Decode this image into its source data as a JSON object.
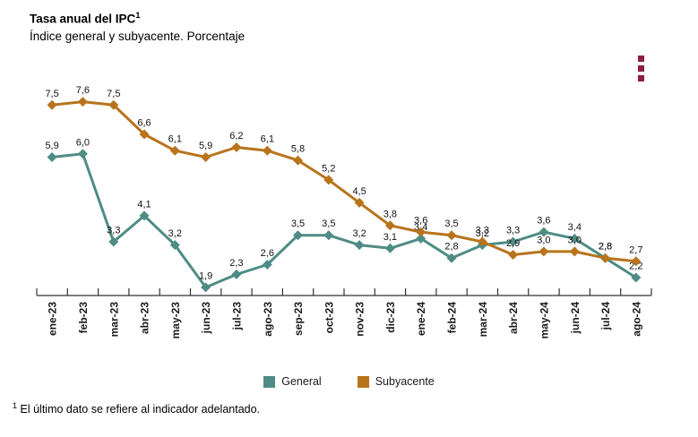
{
  "header": {
    "title": "Tasa anual del IPC",
    "title_sup": "1",
    "subtitle": "Índice general y subyacente. Porcentaje"
  },
  "menu": {
    "icon": "kebab-menu",
    "color": "#8C1F42"
  },
  "chart_data": {
    "type": "line",
    "title": "Tasa anual del IPC",
    "subtitle": "Índice general y subyacente. Porcentaje",
    "categories": [
      "ene-23",
      "feb-23",
      "mar-23",
      "abr-23",
      "may-23",
      "jun-23",
      "jul-23",
      "ago-23",
      "sep-23",
      "oct-23",
      "nov-23",
      "dic-23",
      "ene-24",
      "feb-24",
      "mar-24",
      "abr-24",
      "may-24",
      "jun-24",
      "jul-24",
      "ago-24"
    ],
    "series": [
      {
        "name": "General",
        "color": "#4E8C85",
        "values": [
          5.9,
          6.0,
          3.3,
          4.1,
          3.2,
          1.9,
          2.3,
          2.6,
          3.5,
          3.5,
          3.2,
          3.1,
          3.4,
          2.8,
          3.2,
          3.3,
          3.6,
          3.4,
          2.8,
          2.2
        ]
      },
      {
        "name": "Subyacente",
        "color": "#B8741C",
        "values": [
          7.5,
          7.6,
          7.5,
          6.6,
          6.1,
          5.9,
          6.2,
          6.1,
          5.8,
          5.2,
          4.5,
          3.8,
          3.6,
          3.5,
          3.3,
          2.9,
          3.0,
          3.0,
          2.8,
          2.7
        ]
      }
    ],
    "xlabel": "",
    "ylabel": "",
    "ylim": [
      1.65,
      8.25
    ],
    "grid": false,
    "y_axis_visible": false,
    "data_labels": true,
    "decimal_separator": ",",
    "marker": "diamond",
    "x_label_rotation": -90,
    "legend_position": "bottom"
  },
  "footnote": {
    "sup": "1",
    "text": "El último dato se refiere al indicador adelantado."
  }
}
